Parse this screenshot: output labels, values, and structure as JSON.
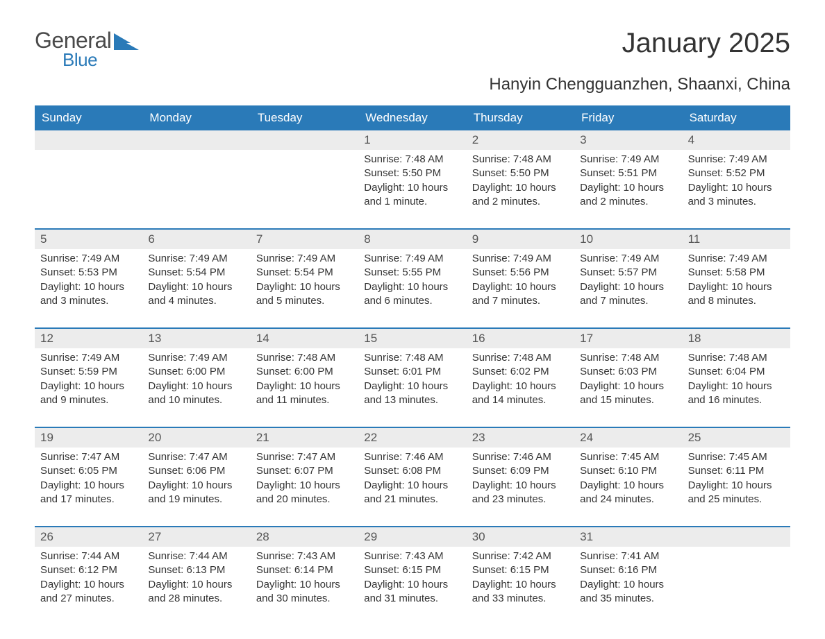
{
  "logo": {
    "text1": "General",
    "text2": "Blue"
  },
  "title": "January 2025",
  "location": "Hanyin Chengguanzhen, Shaanxi, China",
  "colors": {
    "header_bg": "#2a7ab8",
    "header_text": "#ffffff",
    "daynum_bg": "#ececec",
    "text": "#333333",
    "rule": "#2a7ab8",
    "background": "#ffffff"
  },
  "typography": {
    "title_fontsize": 40,
    "location_fontsize": 24,
    "header_fontsize": 17,
    "body_fontsize": 15
  },
  "layout": {
    "columns": 7,
    "rows": 5
  },
  "weekdays": [
    "Sunday",
    "Monday",
    "Tuesday",
    "Wednesday",
    "Thursday",
    "Friday",
    "Saturday"
  ],
  "days": [
    {
      "day": "",
      "sunrise": "",
      "sunset": "",
      "daylight": ""
    },
    {
      "day": "",
      "sunrise": "",
      "sunset": "",
      "daylight": ""
    },
    {
      "day": "",
      "sunrise": "",
      "sunset": "",
      "daylight": ""
    },
    {
      "day": "1",
      "sunrise": "Sunrise: 7:48 AM",
      "sunset": "Sunset: 5:50 PM",
      "daylight": "Daylight: 10 hours and 1 minute."
    },
    {
      "day": "2",
      "sunrise": "Sunrise: 7:48 AM",
      "sunset": "Sunset: 5:50 PM",
      "daylight": "Daylight: 10 hours and 2 minutes."
    },
    {
      "day": "3",
      "sunrise": "Sunrise: 7:49 AM",
      "sunset": "Sunset: 5:51 PM",
      "daylight": "Daylight: 10 hours and 2 minutes."
    },
    {
      "day": "4",
      "sunrise": "Sunrise: 7:49 AM",
      "sunset": "Sunset: 5:52 PM",
      "daylight": "Daylight: 10 hours and 3 minutes."
    },
    {
      "day": "5",
      "sunrise": "Sunrise: 7:49 AM",
      "sunset": "Sunset: 5:53 PM",
      "daylight": "Daylight: 10 hours and 3 minutes."
    },
    {
      "day": "6",
      "sunrise": "Sunrise: 7:49 AM",
      "sunset": "Sunset: 5:54 PM",
      "daylight": "Daylight: 10 hours and 4 minutes."
    },
    {
      "day": "7",
      "sunrise": "Sunrise: 7:49 AM",
      "sunset": "Sunset: 5:54 PM",
      "daylight": "Daylight: 10 hours and 5 minutes."
    },
    {
      "day": "8",
      "sunrise": "Sunrise: 7:49 AM",
      "sunset": "Sunset: 5:55 PM",
      "daylight": "Daylight: 10 hours and 6 minutes."
    },
    {
      "day": "9",
      "sunrise": "Sunrise: 7:49 AM",
      "sunset": "Sunset: 5:56 PM",
      "daylight": "Daylight: 10 hours and 7 minutes."
    },
    {
      "day": "10",
      "sunrise": "Sunrise: 7:49 AM",
      "sunset": "Sunset: 5:57 PM",
      "daylight": "Daylight: 10 hours and 7 minutes."
    },
    {
      "day": "11",
      "sunrise": "Sunrise: 7:49 AM",
      "sunset": "Sunset: 5:58 PM",
      "daylight": "Daylight: 10 hours and 8 minutes."
    },
    {
      "day": "12",
      "sunrise": "Sunrise: 7:49 AM",
      "sunset": "Sunset: 5:59 PM",
      "daylight": "Daylight: 10 hours and 9 minutes."
    },
    {
      "day": "13",
      "sunrise": "Sunrise: 7:49 AM",
      "sunset": "Sunset: 6:00 PM",
      "daylight": "Daylight: 10 hours and 10 minutes."
    },
    {
      "day": "14",
      "sunrise": "Sunrise: 7:48 AM",
      "sunset": "Sunset: 6:00 PM",
      "daylight": "Daylight: 10 hours and 11 minutes."
    },
    {
      "day": "15",
      "sunrise": "Sunrise: 7:48 AM",
      "sunset": "Sunset: 6:01 PM",
      "daylight": "Daylight: 10 hours and 13 minutes."
    },
    {
      "day": "16",
      "sunrise": "Sunrise: 7:48 AM",
      "sunset": "Sunset: 6:02 PM",
      "daylight": "Daylight: 10 hours and 14 minutes."
    },
    {
      "day": "17",
      "sunrise": "Sunrise: 7:48 AM",
      "sunset": "Sunset: 6:03 PM",
      "daylight": "Daylight: 10 hours and 15 minutes."
    },
    {
      "day": "18",
      "sunrise": "Sunrise: 7:48 AM",
      "sunset": "Sunset: 6:04 PM",
      "daylight": "Daylight: 10 hours and 16 minutes."
    },
    {
      "day": "19",
      "sunrise": "Sunrise: 7:47 AM",
      "sunset": "Sunset: 6:05 PM",
      "daylight": "Daylight: 10 hours and 17 minutes."
    },
    {
      "day": "20",
      "sunrise": "Sunrise: 7:47 AM",
      "sunset": "Sunset: 6:06 PM",
      "daylight": "Daylight: 10 hours and 19 minutes."
    },
    {
      "day": "21",
      "sunrise": "Sunrise: 7:47 AM",
      "sunset": "Sunset: 6:07 PM",
      "daylight": "Daylight: 10 hours and 20 minutes."
    },
    {
      "day": "22",
      "sunrise": "Sunrise: 7:46 AM",
      "sunset": "Sunset: 6:08 PM",
      "daylight": "Daylight: 10 hours and 21 minutes."
    },
    {
      "day": "23",
      "sunrise": "Sunrise: 7:46 AM",
      "sunset": "Sunset: 6:09 PM",
      "daylight": "Daylight: 10 hours and 23 minutes."
    },
    {
      "day": "24",
      "sunrise": "Sunrise: 7:45 AM",
      "sunset": "Sunset: 6:10 PM",
      "daylight": "Daylight: 10 hours and 24 minutes."
    },
    {
      "day": "25",
      "sunrise": "Sunrise: 7:45 AM",
      "sunset": "Sunset: 6:11 PM",
      "daylight": "Daylight: 10 hours and 25 minutes."
    },
    {
      "day": "26",
      "sunrise": "Sunrise: 7:44 AM",
      "sunset": "Sunset: 6:12 PM",
      "daylight": "Daylight: 10 hours and 27 minutes."
    },
    {
      "day": "27",
      "sunrise": "Sunrise: 7:44 AM",
      "sunset": "Sunset: 6:13 PM",
      "daylight": "Daylight: 10 hours and 28 minutes."
    },
    {
      "day": "28",
      "sunrise": "Sunrise: 7:43 AM",
      "sunset": "Sunset: 6:14 PM",
      "daylight": "Daylight: 10 hours and 30 minutes."
    },
    {
      "day": "29",
      "sunrise": "Sunrise: 7:43 AM",
      "sunset": "Sunset: 6:15 PM",
      "daylight": "Daylight: 10 hours and 31 minutes."
    },
    {
      "day": "30",
      "sunrise": "Sunrise: 7:42 AM",
      "sunset": "Sunset: 6:15 PM",
      "daylight": "Daylight: 10 hours and 33 minutes."
    },
    {
      "day": "31",
      "sunrise": "Sunrise: 7:41 AM",
      "sunset": "Sunset: 6:16 PM",
      "daylight": "Daylight: 10 hours and 35 minutes."
    },
    {
      "day": "",
      "sunrise": "",
      "sunset": "",
      "daylight": ""
    }
  ]
}
